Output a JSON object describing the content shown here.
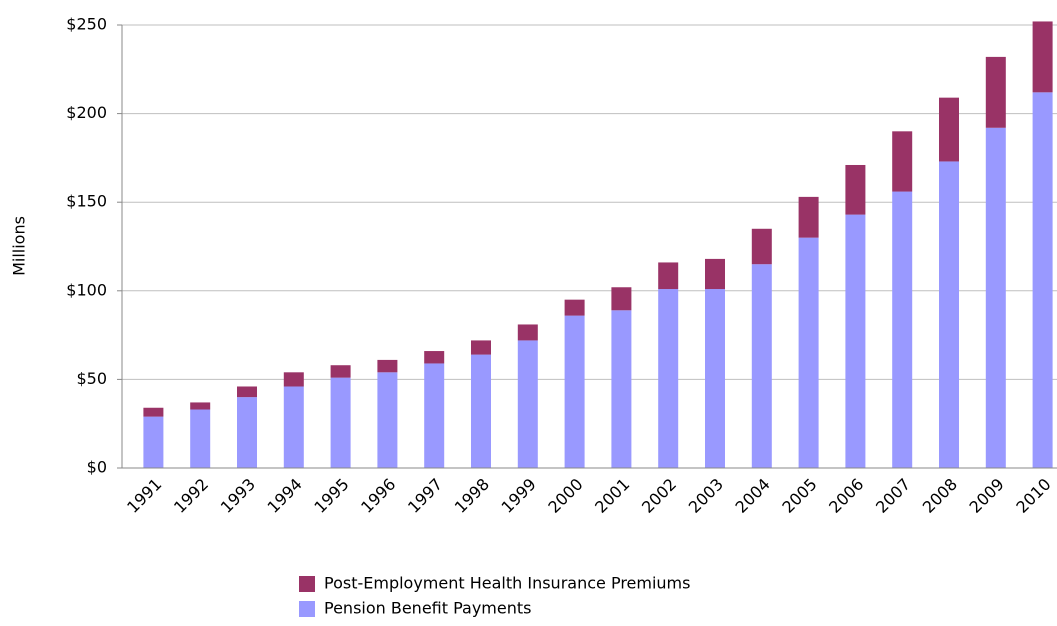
{
  "chart_data": {
    "type": "stacked-bar",
    "y_label": "Millions",
    "categories": [
      "1991",
      "1992",
      "1993",
      "1994",
      "1995",
      "1996",
      "1997",
      "1998",
      "1999",
      "2000",
      "2001",
      "2002",
      "2003",
      "2004",
      "2005",
      "2006",
      "2007",
      "2008",
      "2009",
      "2010"
    ],
    "series": [
      {
        "name": "Pension Benefit Payments",
        "color": "#9999ff",
        "values": [
          29,
          33,
          40,
          46,
          51,
          54,
          59,
          64,
          72,
          86,
          89,
          101,
          101,
          115,
          130,
          143,
          156,
          173,
          192,
          212
        ]
      },
      {
        "name": "Post-Employment Health Insurance Premiums",
        "color": "#993366",
        "values": [
          5,
          4,
          6,
          8,
          7,
          7,
          7,
          8,
          9,
          9,
          13,
          15,
          17,
          20,
          23,
          28,
          34,
          36,
          40,
          40
        ]
      }
    ],
    "ylim": [
      0,
      250
    ],
    "yticks": [
      {
        "value": 0,
        "label": "$0"
      },
      {
        "value": 50,
        "label": "$50"
      },
      {
        "value": 100,
        "label": "$100"
      },
      {
        "value": 150,
        "label": "$150"
      },
      {
        "value": 200,
        "label": "$200"
      },
      {
        "value": 250,
        "label": "$250"
      }
    ],
    "grid": true
  }
}
